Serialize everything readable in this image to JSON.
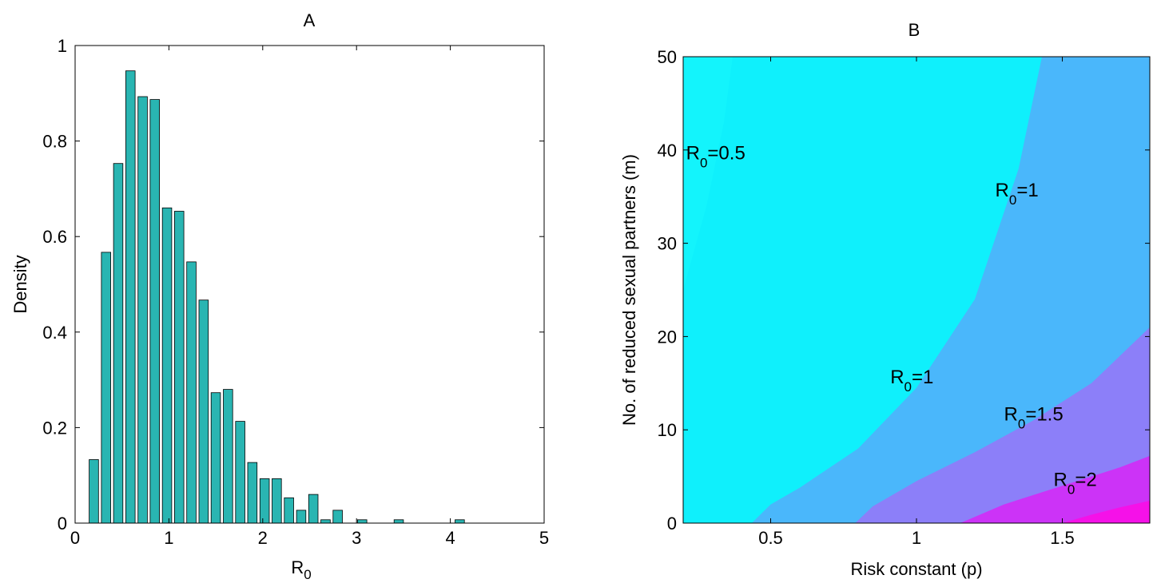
{
  "chart_data": [
    {
      "type": "bar",
      "title": "A",
      "xlabel": "R",
      "xlabel_sub": "0",
      "ylabel": "Density",
      "xlim": [
        0,
        5
      ],
      "ylim": [
        0,
        1
      ],
      "bar_color": "#29b5b2",
      "bar_width": 0.1,
      "x_ticks": [
        "0",
        "1",
        "2",
        "3",
        "4",
        "5"
      ],
      "y_ticks": [
        "0",
        "0.2",
        "0.4",
        "0.6",
        "0.8",
        "1"
      ],
      "x": [
        0.2,
        0.33,
        0.46,
        0.59,
        0.72,
        0.85,
        0.98,
        1.11,
        1.24,
        1.37,
        1.5,
        1.63,
        1.76,
        1.89,
        2.02,
        2.15,
        2.28,
        2.41,
        2.54,
        2.67,
        2.8,
        3.06,
        3.45,
        4.1
      ],
      "values": [
        0.133,
        0.567,
        0.753,
        0.947,
        0.893,
        0.887,
        0.66,
        0.653,
        0.547,
        0.467,
        0.273,
        0.28,
        0.213,
        0.127,
        0.093,
        0.093,
        0.053,
        0.027,
        0.06,
        0.007,
        0.027,
        0.007,
        0.007,
        0.007
      ]
    },
    {
      "type": "heatmap",
      "subtype": "filled-contour",
      "title": "B",
      "xlabel": "Risk constant (p)",
      "ylabel": "No. of reduced sexual partners (m)",
      "xlim": [
        0.2,
        1.8
      ],
      "ylim": [
        0,
        50
      ],
      "x_ticks": [
        {
          "value": 0.5,
          "label": "0.5"
        },
        {
          "value": 1,
          "label": "1"
        },
        {
          "value": 1.5,
          "label": "1.5"
        }
      ],
      "y_ticks": [
        {
          "value": 0,
          "label": "0"
        },
        {
          "value": 10,
          "label": "10"
        },
        {
          "value": 20,
          "label": "20"
        },
        {
          "value": 30,
          "label": "30"
        },
        {
          "value": 40,
          "label": "40"
        },
        {
          "value": 50,
          "label": "50"
        }
      ],
      "regions": [
        {
          "color": "#0ff0fc",
          "lower_boundary": null
        },
        {
          "color": "#4ab7fb",
          "lower_boundary": [
            [
              0.435,
              0
            ],
            [
              0.5,
              2
            ],
            [
              0.6,
              3.8
            ],
            [
              0.8,
              8
            ],
            [
              1.0,
              14.5
            ],
            [
              1.2,
              24
            ],
            [
              1.35,
              38
            ],
            [
              1.43,
              50
            ]
          ]
        },
        {
          "color": "#8c7ff9",
          "lower_boundary": [
            [
              0.79,
              0
            ],
            [
              0.85,
              1.8
            ],
            [
              1.0,
              4.5
            ],
            [
              1.2,
              7.6
            ],
            [
              1.4,
              11
            ],
            [
              1.6,
              15
            ],
            [
              1.8,
              21
            ]
          ]
        },
        {
          "color": "#cc33f7",
          "lower_boundary": [
            [
              1.15,
              0
            ],
            [
              1.3,
              2
            ],
            [
              1.5,
              4
            ],
            [
              1.7,
              6
            ],
            [
              1.8,
              7.2
            ]
          ]
        },
        {
          "color": "#f511e8",
          "lower_boundary": [
            [
              1.5,
              0
            ],
            [
              1.6,
              0.9
            ],
            [
              1.7,
              1.7
            ],
            [
              1.8,
              2.4
            ]
          ]
        }
      ],
      "lighter_band": {
        "color": "#13f4fc",
        "boundary": [
          [
            0.2,
            25
          ],
          [
            0.28,
            34
          ],
          [
            0.34,
            43
          ],
          [
            0.37,
            50
          ]
        ]
      },
      "contour_labels": [
        {
          "base": "R",
          "sub": "0",
          "value": "=0.5",
          "x": 0.21,
          "y": 39
        },
        {
          "base": "R",
          "sub": "0",
          "value": "=1",
          "x": 1.27,
          "y": 35
        },
        {
          "base": "R",
          "sub": "0",
          "value": "=1",
          "x": 0.91,
          "y": 15
        },
        {
          "base": "R",
          "sub": "0",
          "value": "=1.5",
          "x": 1.3,
          "y": 11
        },
        {
          "base": "R",
          "sub": "0",
          "value": "=2",
          "x": 1.47,
          "y": 4
        }
      ]
    }
  ]
}
